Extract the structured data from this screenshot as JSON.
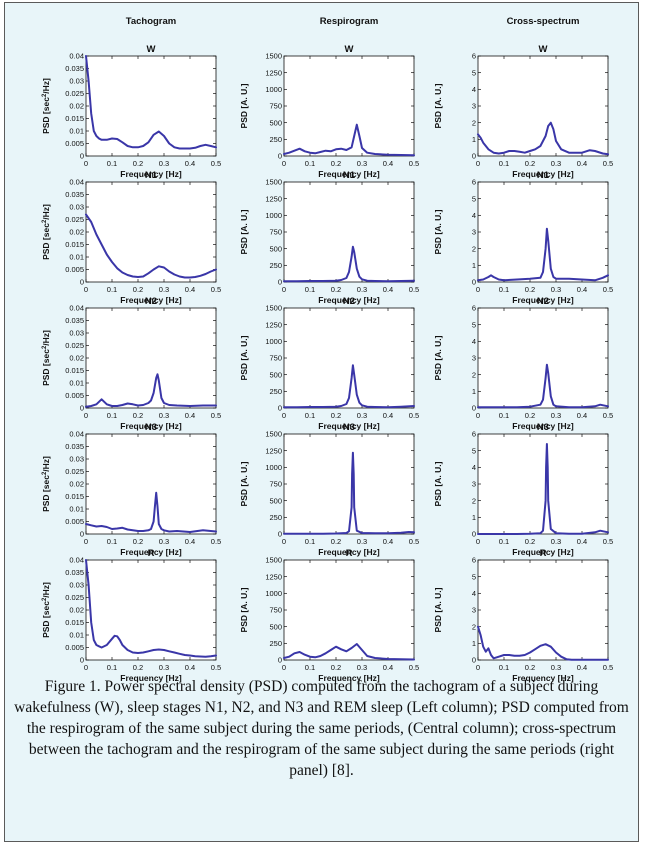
{
  "columns": [
    {
      "title": "Tachogram",
      "ylabel_main": "PSD [sec",
      "ylabel_sup": "2",
      "ylabel_tail": "/Hz]"
    },
    {
      "title": "Respirogram",
      "ylabel_main": "PSD [A. U.]",
      "ylabel_sup": "",
      "ylabel_tail": ""
    },
    {
      "title": "Cross-spectrum",
      "ylabel_main": "PSD [A. U.]",
      "ylabel_sup": "",
      "ylabel_tail": ""
    }
  ],
  "rows": [
    "W",
    "N1",
    "N2",
    "N3",
    "R"
  ],
  "xlabel": "Frequency [Hz]",
  "line_color": "#3a36a8",
  "chart_data": [
    {
      "type": "line",
      "column": "Tachogram",
      "xlabel": "Frequency [Hz]",
      "ylabel": "PSD [sec2/Hz]",
      "xlim": [
        0,
        0.5
      ],
      "ylim": [
        0,
        0.04
      ],
      "xticks": [
        "0",
        "0.1",
        "0.2",
        "0.3",
        "0.4",
        "0.5"
      ],
      "yticks": [
        "0",
        "0.005",
        "0.01",
        "0.015",
        "0.02",
        "0.025",
        "0.03",
        "0.035",
        "0.04"
      ],
      "series": [
        {
          "name": "W",
          "x": [
            0,
            0.01,
            0.02,
            0.03,
            0.04,
            0.05,
            0.06,
            0.08,
            0.1,
            0.12,
            0.14,
            0.16,
            0.18,
            0.2,
            0.22,
            0.24,
            0.26,
            0.28,
            0.3,
            0.32,
            0.34,
            0.36,
            0.38,
            0.4,
            0.42,
            0.44,
            0.46,
            0.48,
            0.5
          ],
          "y": [
            0.04,
            0.03,
            0.017,
            0.01,
            0.008,
            0.007,
            0.0065,
            0.0065,
            0.007,
            0.0068,
            0.0055,
            0.004,
            0.0035,
            0.0035,
            0.004,
            0.0055,
            0.0085,
            0.0098,
            0.008,
            0.005,
            0.0035,
            0.003,
            0.003,
            0.003,
            0.0033,
            0.004,
            0.0045,
            0.004,
            0.0035
          ]
        },
        {
          "name": "N1",
          "x": [
            0,
            0.02,
            0.04,
            0.06,
            0.08,
            0.1,
            0.12,
            0.14,
            0.16,
            0.18,
            0.2,
            0.22,
            0.24,
            0.26,
            0.28,
            0.3,
            0.32,
            0.34,
            0.36,
            0.38,
            0.4,
            0.42,
            0.44,
            0.46,
            0.48,
            0.5
          ],
          "y": [
            0.027,
            0.024,
            0.019,
            0.015,
            0.011,
            0.008,
            0.0055,
            0.0038,
            0.0028,
            0.0022,
            0.002,
            0.0022,
            0.0035,
            0.005,
            0.0063,
            0.0058,
            0.0042,
            0.003,
            0.0022,
            0.0018,
            0.0018,
            0.002,
            0.0025,
            0.0032,
            0.0042,
            0.005
          ]
        },
        {
          "name": "N2",
          "x": [
            0,
            0.02,
            0.04,
            0.05,
            0.06,
            0.07,
            0.08,
            0.1,
            0.12,
            0.14,
            0.16,
            0.18,
            0.2,
            0.22,
            0.24,
            0.25,
            0.26,
            0.27,
            0.275,
            0.28,
            0.29,
            0.3,
            0.32,
            0.35,
            0.4,
            0.45,
            0.5
          ],
          "y": [
            0.0005,
            0.0008,
            0.0015,
            0.0025,
            0.0035,
            0.0025,
            0.0015,
            0.0008,
            0.0008,
            0.0012,
            0.0018,
            0.0015,
            0.001,
            0.0012,
            0.002,
            0.003,
            0.006,
            0.012,
            0.0135,
            0.011,
            0.004,
            0.002,
            0.0012,
            0.001,
            0.0008,
            0.001,
            0.001
          ]
        },
        {
          "name": "N3",
          "x": [
            0,
            0.02,
            0.04,
            0.06,
            0.08,
            0.1,
            0.12,
            0.14,
            0.16,
            0.18,
            0.2,
            0.22,
            0.24,
            0.25,
            0.26,
            0.265,
            0.27,
            0.275,
            0.28,
            0.29,
            0.3,
            0.32,
            0.35,
            0.4,
            0.45,
            0.48,
            0.5
          ],
          "y": [
            0.004,
            0.0035,
            0.003,
            0.0032,
            0.0028,
            0.002,
            0.0022,
            0.0025,
            0.0018,
            0.0015,
            0.0012,
            0.0012,
            0.0015,
            0.002,
            0.005,
            0.011,
            0.0165,
            0.011,
            0.004,
            0.002,
            0.0015,
            0.001,
            0.0012,
            0.0008,
            0.0015,
            0.0012,
            0.001
          ]
        },
        {
          "name": "R",
          "x": [
            0,
            0.01,
            0.02,
            0.03,
            0.04,
            0.05,
            0.06,
            0.08,
            0.1,
            0.11,
            0.12,
            0.13,
            0.14,
            0.16,
            0.18,
            0.2,
            0.22,
            0.24,
            0.26,
            0.28,
            0.3,
            0.32,
            0.34,
            0.36,
            0.38,
            0.4,
            0.42,
            0.44,
            0.46,
            0.48,
            0.5
          ],
          "y": [
            0.04,
            0.03,
            0.015,
            0.008,
            0.006,
            0.0055,
            0.005,
            0.006,
            0.0085,
            0.0097,
            0.0095,
            0.008,
            0.006,
            0.004,
            0.003,
            0.0028,
            0.003,
            0.0035,
            0.004,
            0.0042,
            0.004,
            0.0035,
            0.003,
            0.0025,
            0.002,
            0.0018,
            0.0015,
            0.0014,
            0.0013,
            0.0015,
            0.0018
          ]
        }
      ]
    },
    {
      "type": "line",
      "column": "Respirogram",
      "xlabel": "Frequency [Hz]",
      "ylabel": "PSD [A. U.]",
      "xlim": [
        0,
        0.5
      ],
      "ylim": [
        0,
        1500
      ],
      "xticks": [
        "0",
        "0.1",
        "0.2",
        "0.3",
        "0.4",
        "0.5"
      ],
      "yticks": [
        "0",
        "250",
        "500",
        "750",
        "1000",
        "1250",
        "1500"
      ],
      "series": [
        {
          "name": "W",
          "x": [
            0,
            0.02,
            0.04,
            0.06,
            0.08,
            0.1,
            0.12,
            0.14,
            0.16,
            0.18,
            0.2,
            0.22,
            0.24,
            0.26,
            0.27,
            0.28,
            0.29,
            0.3,
            0.32,
            0.35,
            0.4,
            0.45,
            0.5
          ],
          "y": [
            30,
            50,
            80,
            110,
            70,
            50,
            40,
            60,
            80,
            70,
            100,
            110,
            90,
            130,
            300,
            470,
            300,
            120,
            50,
            30,
            20,
            15,
            10
          ]
        },
        {
          "name": "N1",
          "x": [
            0,
            0.05,
            0.1,
            0.15,
            0.2,
            0.22,
            0.24,
            0.25,
            0.26,
            0.265,
            0.27,
            0.28,
            0.29,
            0.3,
            0.32,
            0.35,
            0.4,
            0.45,
            0.5
          ],
          "y": [
            10,
            10,
            15,
            15,
            20,
            30,
            60,
            150,
            380,
            530,
            450,
            200,
            80,
            40,
            20,
            15,
            10,
            15,
            20
          ]
        },
        {
          "name": "N2",
          "x": [
            0,
            0.05,
            0.1,
            0.15,
            0.2,
            0.22,
            0.24,
            0.25,
            0.26,
            0.265,
            0.27,
            0.28,
            0.29,
            0.3,
            0.32,
            0.35,
            0.4,
            0.45,
            0.5
          ],
          "y": [
            10,
            10,
            15,
            15,
            20,
            30,
            60,
            150,
            450,
            640,
            500,
            200,
            80,
            40,
            20,
            15,
            10,
            20,
            30
          ]
        },
        {
          "name": "N3",
          "x": [
            0,
            0.05,
            0.1,
            0.15,
            0.2,
            0.24,
            0.25,
            0.26,
            0.262,
            0.265,
            0.268,
            0.27,
            0.28,
            0.3,
            0.35,
            0.4,
            0.45,
            0.48,
            0.5
          ],
          "y": [
            5,
            5,
            5,
            5,
            8,
            15,
            40,
            400,
            900,
            1220,
            900,
            400,
            50,
            15,
            10,
            10,
            20,
            30,
            25
          ]
        },
        {
          "name": "R",
          "x": [
            0,
            0.02,
            0.04,
            0.06,
            0.08,
            0.1,
            0.12,
            0.14,
            0.16,
            0.18,
            0.2,
            0.22,
            0.24,
            0.26,
            0.28,
            0.3,
            0.32,
            0.35,
            0.4,
            0.45,
            0.5
          ],
          "y": [
            30,
            50,
            100,
            120,
            80,
            50,
            40,
            60,
            100,
            150,
            200,
            160,
            130,
            180,
            240,
            150,
            60,
            30,
            15,
            10,
            8
          ]
        }
      ]
    },
    {
      "type": "line",
      "column": "Cross-spectrum",
      "xlabel": "Frequency [Hz]",
      "ylabel": "PSD [A. U.]",
      "xlim": [
        0,
        0.5
      ],
      "ylim": [
        0,
        6
      ],
      "xticks": [
        "0",
        "0.1",
        "0.2",
        "0.3",
        "0.4",
        "0.5"
      ],
      "yticks": [
        "0",
        "1",
        "2",
        "3",
        "4",
        "5",
        "6"
      ],
      "series": [
        {
          "name": "W",
          "x": [
            0,
            0.01,
            0.02,
            0.04,
            0.06,
            0.08,
            0.1,
            0.12,
            0.14,
            0.16,
            0.18,
            0.2,
            0.22,
            0.24,
            0.26,
            0.27,
            0.28,
            0.29,
            0.3,
            0.32,
            0.35,
            0.4,
            0.43,
            0.45,
            0.48,
            0.5
          ],
          "y": [
            1.3,
            1.1,
            0.8,
            0.4,
            0.2,
            0.15,
            0.2,
            0.3,
            0.3,
            0.25,
            0.2,
            0.3,
            0.4,
            0.6,
            1.2,
            1.8,
            2.0,
            1.6,
            0.9,
            0.4,
            0.2,
            0.2,
            0.35,
            0.3,
            0.15,
            0.1
          ]
        },
        {
          "name": "N1",
          "x": [
            0,
            0.02,
            0.04,
            0.05,
            0.06,
            0.08,
            0.1,
            0.15,
            0.2,
            0.24,
            0.25,
            0.26,
            0.265,
            0.27,
            0.28,
            0.29,
            0.3,
            0.35,
            0.4,
            0.45,
            0.48,
            0.5
          ],
          "y": [
            0.1,
            0.15,
            0.3,
            0.4,
            0.3,
            0.15,
            0.1,
            0.15,
            0.2,
            0.25,
            0.6,
            2.0,
            3.2,
            2.5,
            0.8,
            0.3,
            0.2,
            0.2,
            0.15,
            0.1,
            0.25,
            0.4
          ]
        },
        {
          "name": "N2",
          "x": [
            0,
            0.05,
            0.1,
            0.15,
            0.2,
            0.24,
            0.25,
            0.26,
            0.265,
            0.27,
            0.28,
            0.29,
            0.3,
            0.35,
            0.4,
            0.45,
            0.47,
            0.5
          ],
          "y": [
            0.05,
            0.05,
            0.05,
            0.05,
            0.08,
            0.2,
            0.5,
            1.8,
            2.6,
            2.1,
            0.7,
            0.2,
            0.1,
            0.05,
            0.05,
            0.1,
            0.2,
            0.1
          ]
        },
        {
          "name": "N3",
          "x": [
            0,
            0.05,
            0.1,
            0.15,
            0.2,
            0.24,
            0.25,
            0.26,
            0.262,
            0.265,
            0.268,
            0.27,
            0.28,
            0.3,
            0.35,
            0.4,
            0.45,
            0.47,
            0.5
          ],
          "y": [
            0,
            0,
            0,
            0,
            0.02,
            0.05,
            0.2,
            2.0,
            4.0,
            5.4,
            4.0,
            2.0,
            0.3,
            0.05,
            0.02,
            0.02,
            0.1,
            0.2,
            0.1
          ]
        },
        {
          "name": "R",
          "x": [
            0,
            0.01,
            0.02,
            0.03,
            0.04,
            0.05,
            0.06,
            0.08,
            0.1,
            0.12,
            0.14,
            0.16,
            0.18,
            0.2,
            0.22,
            0.24,
            0.26,
            0.28,
            0.3,
            0.32,
            0.34,
            0.36,
            0.4,
            0.45,
            0.5
          ],
          "y": [
            2.0,
            1.5,
            0.8,
            0.5,
            0.7,
            0.3,
            0.1,
            0.2,
            0.3,
            0.3,
            0.25,
            0.25,
            0.3,
            0.45,
            0.65,
            0.85,
            0.95,
            0.8,
            0.45,
            0.2,
            0.05,
            0.02,
            0.02,
            0.02,
            0.02
          ]
        }
      ]
    }
  ],
  "caption": "Figure 1.  Power spectral density (PSD) computed from the tachogram of a subject during wakefulness (W), sleep stages N1, N2, and N3 and REM sleep (Left column); PSD computed from the respirogram of the same subject during the same periods, (Central column); cross-spectrum between the tachogram and the respirogram of the same subject during the same periods  (right panel) [8]."
}
